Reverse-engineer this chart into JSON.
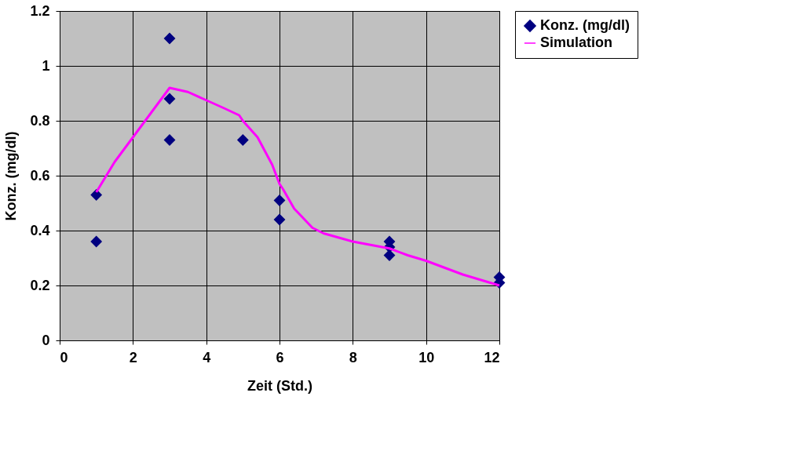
{
  "chart_data": {
    "type": "scatter",
    "xlabel": "Zeit (Std.)",
    "ylabel": "Konz. (mg/dl)",
    "xlim": [
      0,
      12
    ],
    "xticks": [
      0,
      2,
      4,
      6,
      8,
      10,
      12
    ],
    "ylim": [
      0,
      1.2
    ],
    "yticks": [
      0,
      0.2,
      0.4,
      0.6,
      0.8,
      1,
      1.2
    ],
    "grid": true,
    "legend": "right",
    "series": [
      {
        "name": "Konz. (mg/dl)",
        "marker": "diamond",
        "color": "#000080",
        "x": [
          1,
          1,
          3,
          3,
          3,
          5,
          6,
          6,
          9,
          9,
          9,
          12,
          12
        ],
        "values": [
          0.53,
          0.36,
          1.1,
          0.88,
          0.73,
          0.73,
          0.51,
          0.44,
          0.36,
          0.34,
          0.31,
          0.23,
          0.21
        ]
      },
      {
        "name": "Simulation",
        "type": "line",
        "marker": "none",
        "line_style": "solid",
        "color": "#ff00ff",
        "x": [
          1,
          1.5,
          2,
          2.5,
          3,
          3.5,
          4,
          4.5,
          4.9,
          5,
          5.4,
          5.8,
          6,
          6.1,
          6.4,
          6.9,
          7.2,
          8,
          9,
          9.5,
          10,
          11,
          12
        ],
        "values": [
          0.54,
          0.65,
          0.74,
          0.83,
          0.92,
          0.905,
          0.875,
          0.845,
          0.82,
          0.8,
          0.74,
          0.64,
          0.57,
          0.55,
          0.48,
          0.41,
          0.39,
          0.36,
          0.335,
          0.31,
          0.29,
          0.24,
          0.2
        ]
      }
    ]
  }
}
